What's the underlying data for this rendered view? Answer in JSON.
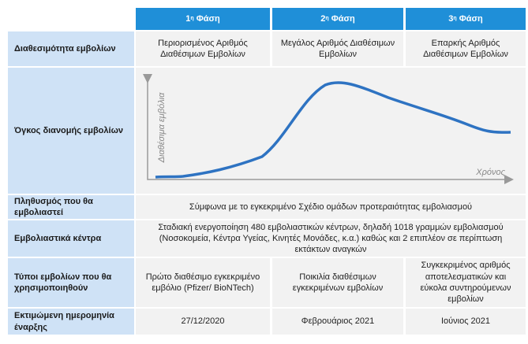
{
  "header": {
    "phases": [
      {
        "number": "1",
        "suffix": "η",
        "label": "Φάση"
      },
      {
        "number": "2",
        "suffix": "η",
        "label": "Φάση"
      },
      {
        "number": "3",
        "suffix": "η",
        "label": "Φάση"
      }
    ]
  },
  "rows": [
    {
      "label": "Διαθεσιμότητα εμβολίων",
      "cells": [
        "Περιορισμένος Αριθμός Διαθέσιμων Εμβολίων",
        "Μεγάλος Αριθμός Διαθέσιμων Εμβολίων",
        "Επαρκής Αριθμός Διαθέσιμων Εμβολίων"
      ]
    },
    {
      "label": "Όγκος διανομής εμβολίων",
      "chart": {
        "y_label": "Διαθέσιμα εμβόλια",
        "x_label": "Χρόνος"
      }
    },
    {
      "label": "Πληθυσμός που θα εμβολιαστεί",
      "text": "Σύμφωνα με το εγκεκριμένο Σχέδιο ομάδων προτεραιότητας εμβολιασμού"
    },
    {
      "label": "Εμβολιαστικά κέντρα",
      "text": "Σταδιακή ενεργοποίηση 480 εμβολιαστικών κέντρων, δηλαδή 1018 γραμμών εμβολιασμού (Νοσοκομεία, Κέντρα Υγείας, Κινητές Μονάδες, κ.α.) καθώς και 2 επιπλέον σε περίπτωση εκτάκτων αναγκών"
    },
    {
      "label": "Τύποι εμβολίων που θα χρησιμοποιηθούν",
      "cells": [
        "Πρώτο διαθέσιμο εγκεκριμένο εμβόλιο (Pfizer/ BioNTech)",
        "Ποικιλία διαθέσιμων εγκεκριμένων εμβολίων",
        "Συγκεκριμένος αριθμός αποτελεσματικών και εύκολα συντηρούμενων εμβολίων"
      ]
    },
    {
      "label": "Εκτιμώμενη ημερομηνία έναρξης",
      "cells": [
        "27/12/2020",
        "Φεβρουάριος 2021",
        "Ιούνιος 2021"
      ]
    }
  ]
}
